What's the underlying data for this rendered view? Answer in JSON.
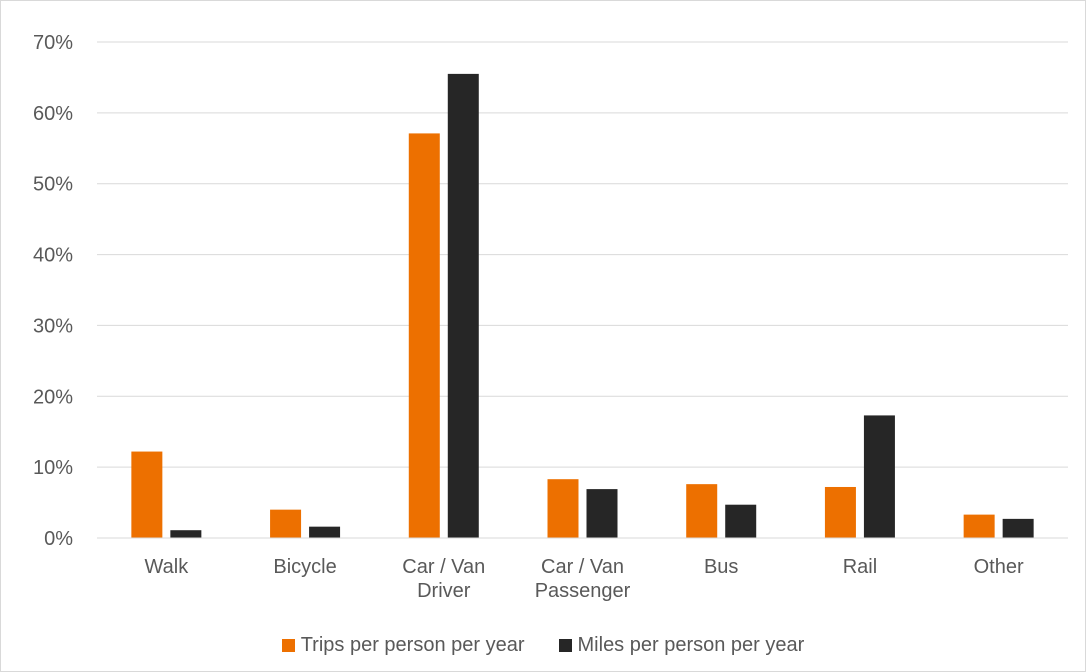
{
  "chart_data": {
    "type": "bar",
    "title": "",
    "xlabel": "",
    "ylabel": "",
    "categories": [
      [
        "Walk"
      ],
      [
        "Bicycle"
      ],
      [
        "Car / Van",
        "Driver"
      ],
      [
        "Car / Van",
        "Passenger"
      ],
      [
        "Bus"
      ],
      [
        "Rail"
      ],
      [
        "Other"
      ]
    ],
    "series": [
      {
        "name": "Trips per person per year",
        "color": "#ed7000",
        "values": [
          12.2,
          4.0,
          57.1,
          8.3,
          7.6,
          7.2,
          3.3
        ]
      },
      {
        "name": "Miles per person per year",
        "color": "#262626",
        "values": [
          1.1,
          1.6,
          65.5,
          6.9,
          4.7,
          17.3,
          2.7
        ]
      }
    ],
    "ylim": [
      0,
      70
    ],
    "yticks": [
      "0%",
      "10%",
      "20%",
      "30%",
      "40%",
      "50%",
      "60%",
      "70%"
    ],
    "grid": true,
    "legend_position": "bottom"
  }
}
